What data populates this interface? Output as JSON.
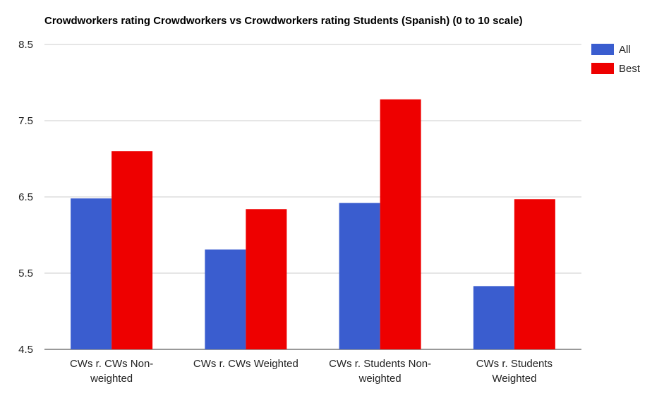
{
  "chart_data": {
    "type": "bar",
    "title": "Crowdworkers rating Crowdworkers vs Crowdworkers rating Students (Spanish) (0 to 10 scale)",
    "xlabel": "",
    "ylabel": "",
    "ylim": [
      4.5,
      8.5
    ],
    "yticks": [
      "4.5",
      "5.5",
      "6.5",
      "7.5",
      "8.5"
    ],
    "grid": true,
    "legend_position": "right",
    "categories": [
      [
        "CWs r. CWs Non-",
        "weighted"
      ],
      [
        "CWs r. CWs Weighted"
      ],
      [
        "CWs r. Students Non-",
        "weighted"
      ],
      [
        "CWs r. Students",
        "Weighted"
      ]
    ],
    "series": [
      {
        "name": "All",
        "color": "#3a5dcf",
        "values": [
          6.48,
          5.81,
          6.42,
          5.33
        ]
      },
      {
        "name": "Best",
        "color": "#ee0000",
        "values": [
          7.1,
          6.34,
          7.78,
          6.47
        ]
      }
    ]
  }
}
